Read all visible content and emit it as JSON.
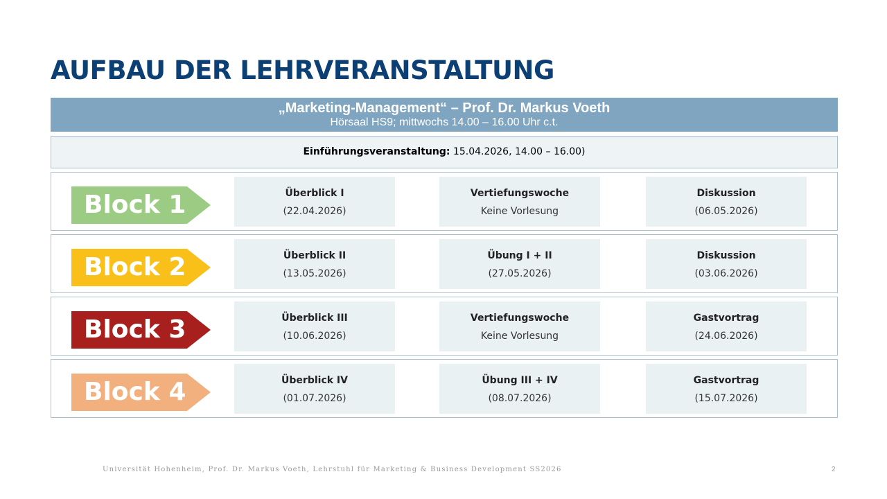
{
  "title": "AUFBAU DER LEHRVERANSTALTUNG",
  "header": {
    "course": "„Marketing-Management“ – Prof. Dr. Markus Voeth",
    "location": "Hörsaal HS9; mittwochs 14.00 – 16.00 Uhr c.t."
  },
  "intro": {
    "label": "Einführungsveranstaltung:",
    "value": " 15.04.2026, 14.00 – 16.00)"
  },
  "blocks": [
    {
      "label": "Block 1",
      "color": "#9ccc84",
      "sessions": [
        {
          "title": "Überblick I",
          "detail": "(22.04.2026)"
        },
        {
          "title": "Vertiefungswoche",
          "detail": "Keine Vorlesung"
        },
        {
          "title": "Diskussion",
          "detail": "(06.05.2026)"
        }
      ]
    },
    {
      "label": "Block 2",
      "color": "#f9c01a",
      "sessions": [
        {
          "title": "Überblick II",
          "detail": "(13.05.2026)"
        },
        {
          "title": "Übung I + II",
          "detail": "(27.05.2026)"
        },
        {
          "title": "Diskussion",
          "detail": "(03.06.2026)"
        }
      ]
    },
    {
      "label": "Block 3",
      "color": "#a8201e",
      "sessions": [
        {
          "title": "Überblick III",
          "detail": "(10.06.2026)"
        },
        {
          "title": "Vertiefungswoche",
          "detail": "Keine Vorlesung"
        },
        {
          "title": "Gastvortrag",
          "detail": "(24.06.2026)"
        }
      ]
    },
    {
      "label": "Block 4",
      "color": "#f2b07f",
      "sessions": [
        {
          "title": "Überblick IV",
          "detail": "(01.07.2026)"
        },
        {
          "title": "Übung III + IV",
          "detail": "(08.07.2026)"
        },
        {
          "title": "Gastvortrag",
          "detail": "(15.07.2026)"
        }
      ]
    }
  ],
  "footer": {
    "text": "Universität Hohenheim, Prof. Dr. Markus Voeth, Lehrstuhl für Marketing & Business Development SS2026",
    "page": "2"
  }
}
